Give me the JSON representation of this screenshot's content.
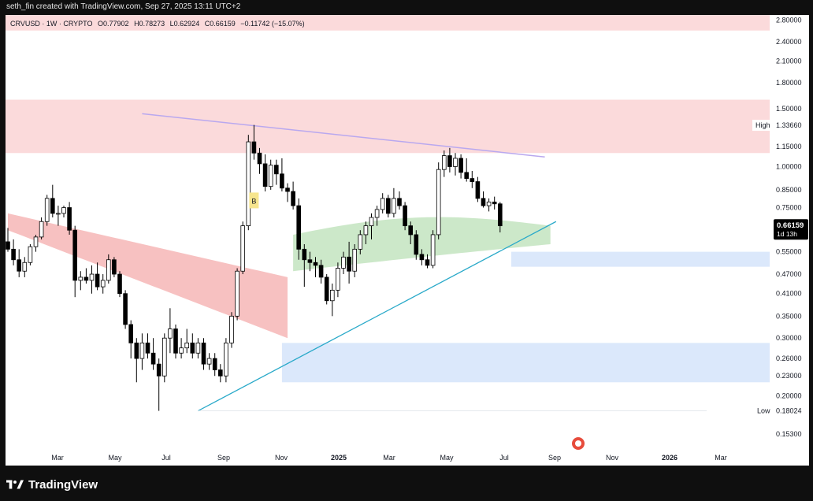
{
  "header": {
    "credit": "seth_fin created with TradingView.com, Sep 27, 2025 13:11 UTC+2"
  },
  "legend": {
    "symbol": "CRVUSD · 1W · CRYPTO",
    "open": "O0.77902",
    "high": "H0.78273",
    "low": "L0.62924",
    "close": "C0.66159",
    "change": "−0.11742 (−15.07%)"
  },
  "footer": {
    "brand": "TradingView"
  },
  "colors": {
    "up": "#ffffff",
    "down": "#000000",
    "wick": "#000000",
    "resistance_zone": "#fbdadb",
    "support_zone": "#dbe8fb",
    "trendline": "#29a9c9",
    "ma_line": "#b9a8ef",
    "cloud_red": "#f6b6b6",
    "cloud_green": "#c7e6c3",
    "price_label_bg": "#000000"
  },
  "chart_data": {
    "type": "candlestick",
    "timeframe": "1W",
    "symbol": "CRVUSD",
    "y_scale": "log",
    "ylim": [
      0.14,
      2.9
    ],
    "x_ticks": [
      "Mar",
      "May",
      "Jul",
      "Sep",
      "Nov",
      "2025",
      "Mar",
      "May",
      "Jul",
      "Sep",
      "Nov",
      "2026",
      "Mar"
    ],
    "y_ticks": [
      "2.80000",
      "2.40000",
      "2.10000",
      "1.80000",
      "1.50000",
      "1.15000",
      "1.00000",
      "0.85000",
      "0.75000",
      "0.55000",
      "0.47000",
      "0.41000",
      "0.35000",
      "0.30000",
      "0.26000",
      "0.23000",
      "0.20000",
      "0.15300"
    ],
    "current_price": {
      "value": "0.66159",
      "countdown": "1d 13h"
    },
    "high_marker": {
      "label": "High",
      "value": "1.33660"
    },
    "low_marker": {
      "label": "Low",
      "value": "0.18024"
    },
    "signal_label": "B",
    "zones": [
      {
        "kind": "resistance",
        "from": 2.6,
        "to": 2.9
      },
      {
        "kind": "resistance",
        "from": 1.1,
        "to": 1.6
      },
      {
        "kind": "support",
        "from": 0.495,
        "to": 0.55
      },
      {
        "kind": "support",
        "from": 0.22,
        "to": 0.29
      }
    ],
    "trendline": {
      "from_week": 34,
      "from_price": 0.18,
      "to_week": 98,
      "to_price": 0.68
    },
    "ma_line": {
      "from_week": 24,
      "from_price": 1.45,
      "to_week": 96,
      "to_price": 1.07
    },
    "candles_start_month": "Jan 2024",
    "candles": [
      [
        0.59,
        0.65,
        0.55,
        0.56
      ],
      [
        0.56,
        0.6,
        0.5,
        0.52
      ],
      [
        0.52,
        0.56,
        0.46,
        0.48
      ],
      [
        0.48,
        0.53,
        0.46,
        0.51
      ],
      [
        0.51,
        0.58,
        0.5,
        0.57
      ],
      [
        0.57,
        0.62,
        0.55,
        0.61
      ],
      [
        0.61,
        0.7,
        0.6,
        0.68
      ],
      [
        0.68,
        0.82,
        0.66,
        0.8
      ],
      [
        0.8,
        0.88,
        0.7,
        0.72
      ],
      [
        0.72,
        0.76,
        0.66,
        0.72
      ],
      [
        0.72,
        0.76,
        0.7,
        0.75
      ],
      [
        0.75,
        0.78,
        0.62,
        0.64
      ],
      [
        0.64,
        0.66,
        0.4,
        0.45
      ],
      [
        0.45,
        0.48,
        0.42,
        0.46
      ],
      [
        0.46,
        0.49,
        0.44,
        0.45
      ],
      [
        0.45,
        0.5,
        0.41,
        0.47
      ],
      [
        0.47,
        0.51,
        0.42,
        0.43
      ],
      [
        0.43,
        0.47,
        0.41,
        0.45
      ],
      [
        0.45,
        0.54,
        0.44,
        0.52
      ],
      [
        0.52,
        0.53,
        0.46,
        0.47
      ],
      [
        0.47,
        0.48,
        0.4,
        0.41
      ],
      [
        0.41,
        0.42,
        0.32,
        0.33
      ],
      [
        0.33,
        0.34,
        0.26,
        0.29
      ],
      [
        0.29,
        0.3,
        0.22,
        0.26
      ],
      [
        0.26,
        0.31,
        0.24,
        0.29
      ],
      [
        0.29,
        0.31,
        0.26,
        0.27
      ],
      [
        0.27,
        0.3,
        0.24,
        0.25
      ],
      [
        0.25,
        0.26,
        0.18,
        0.23
      ],
      [
        0.23,
        0.31,
        0.22,
        0.3
      ],
      [
        0.3,
        0.37,
        0.27,
        0.32
      ],
      [
        0.32,
        0.33,
        0.26,
        0.27
      ],
      [
        0.27,
        0.3,
        0.26,
        0.28
      ],
      [
        0.28,
        0.32,
        0.27,
        0.29
      ],
      [
        0.29,
        0.31,
        0.26,
        0.27
      ],
      [
        0.27,
        0.3,
        0.26,
        0.29
      ],
      [
        0.29,
        0.3,
        0.24,
        0.25
      ],
      [
        0.25,
        0.27,
        0.24,
        0.26
      ],
      [
        0.26,
        0.27,
        0.23,
        0.24
      ],
      [
        0.24,
        0.25,
        0.22,
        0.23
      ],
      [
        0.23,
        0.3,
        0.22,
        0.29
      ],
      [
        0.29,
        0.36,
        0.28,
        0.35
      ],
      [
        0.35,
        0.49,
        0.34,
        0.48
      ],
      [
        0.48,
        0.68,
        0.47,
        0.66
      ],
      [
        0.66,
        1.25,
        0.64,
        1.19
      ],
      [
        1.19,
        1.34,
        1.05,
        1.1
      ],
      [
        1.1,
        1.14,
        0.95,
        1.02
      ],
      [
        1.02,
        1.09,
        0.84,
        0.87
      ],
      [
        0.87,
        1.05,
        0.85,
        1.01
      ],
      [
        1.01,
        1.05,
        0.88,
        0.95
      ],
      [
        0.95,
        1.06,
        0.84,
        0.86
      ],
      [
        0.86,
        0.89,
        0.78,
        0.84
      ],
      [
        0.84,
        0.9,
        0.74,
        0.76
      ],
      [
        0.76,
        0.8,
        0.52,
        0.56
      ],
      [
        0.56,
        0.58,
        0.43,
        0.52
      ],
      [
        0.52,
        0.55,
        0.48,
        0.51
      ],
      [
        0.51,
        0.53,
        0.46,
        0.5
      ],
      [
        0.5,
        0.52,
        0.44,
        0.46
      ],
      [
        0.46,
        0.47,
        0.38,
        0.39
      ],
      [
        0.39,
        0.44,
        0.35,
        0.42
      ],
      [
        0.42,
        0.51,
        0.4,
        0.49
      ],
      [
        0.49,
        0.55,
        0.47,
        0.53
      ],
      [
        0.53,
        0.59,
        0.44,
        0.48
      ],
      [
        0.48,
        0.58,
        0.46,
        0.56
      ],
      [
        0.56,
        0.64,
        0.54,
        0.62
      ],
      [
        0.62,
        0.68,
        0.58,
        0.66
      ],
      [
        0.66,
        0.72,
        0.6,
        0.7
      ],
      [
        0.7,
        0.76,
        0.66,
        0.74
      ],
      [
        0.74,
        0.83,
        0.72,
        0.8
      ],
      [
        0.8,
        0.82,
        0.7,
        0.72
      ],
      [
        0.72,
        0.86,
        0.7,
        0.8
      ],
      [
        0.8,
        0.84,
        0.74,
        0.76
      ],
      [
        0.76,
        0.78,
        0.64,
        0.66
      ],
      [
        0.66,
        0.68,
        0.58,
        0.62
      ],
      [
        0.62,
        0.64,
        0.52,
        0.54
      ],
      [
        0.54,
        0.56,
        0.5,
        0.52
      ],
      [
        0.52,
        0.54,
        0.49,
        0.5
      ],
      [
        0.5,
        0.64,
        0.49,
        0.62
      ],
      [
        0.62,
        1.03,
        0.6,
        0.98
      ],
      [
        0.98,
        1.12,
        0.93,
        1.08
      ],
      [
        1.08,
        1.14,
        0.96,
        1.0
      ],
      [
        1.0,
        1.1,
        0.94,
        1.06
      ],
      [
        1.06,
        1.09,
        0.92,
        0.96
      ],
      [
        0.96,
        1.06,
        0.9,
        0.92
      ],
      [
        0.92,
        0.97,
        0.86,
        0.9
      ],
      [
        0.9,
        0.93,
        0.78,
        0.8
      ],
      [
        0.8,
        0.84,
        0.75,
        0.76
      ],
      [
        0.76,
        0.8,
        0.73,
        0.78
      ],
      [
        0.78,
        0.81,
        0.74,
        0.77
      ],
      [
        0.77,
        0.78,
        0.63,
        0.66
      ]
    ]
  }
}
